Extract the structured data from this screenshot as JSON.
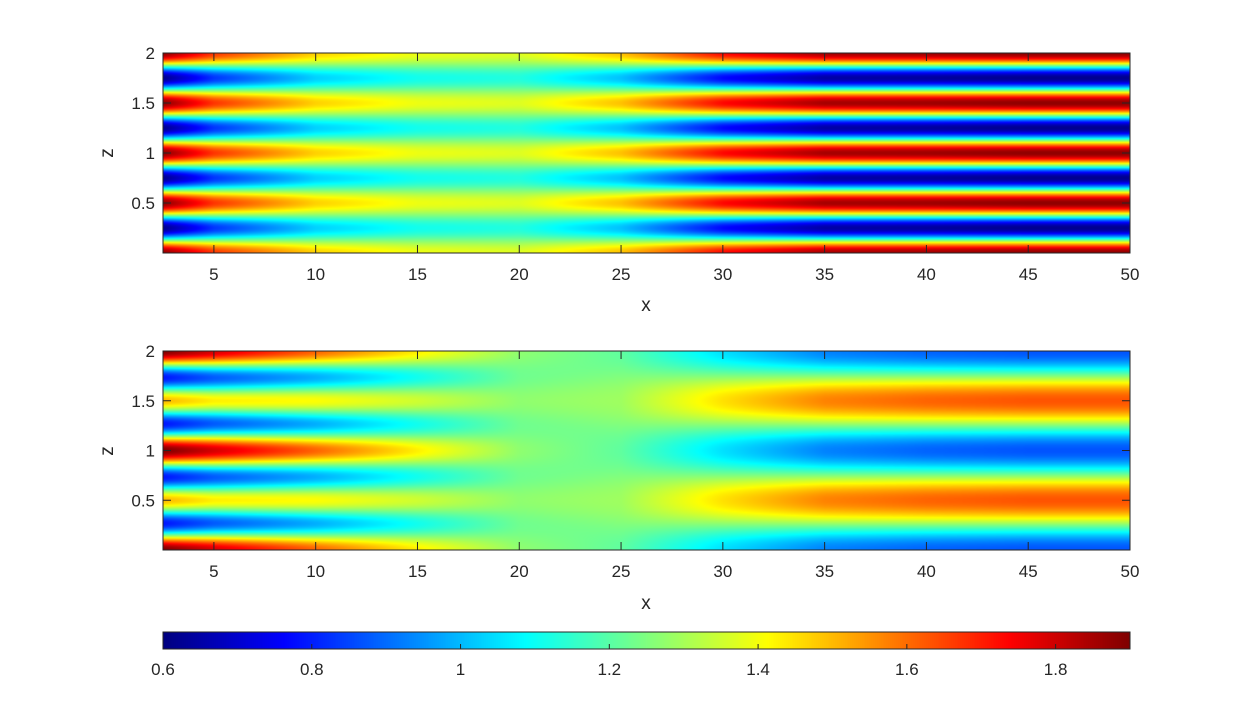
{
  "chart_data": [
    {
      "type": "heatmap",
      "title": "",
      "xlabel": "x",
      "ylabel": "z",
      "xlim": [
        2.5,
        50
      ],
      "ylim": [
        0,
        2
      ],
      "xticks": [
        5,
        10,
        15,
        20,
        25,
        30,
        35,
        40,
        45,
        50
      ],
      "yticks": [
        0.5,
        1,
        1.5,
        2
      ],
      "colormap": "jet",
      "clim": [
        0.6,
        1.9
      ],
      "description_values": {
        "x_samples": [
          2.5,
          5,
          10,
          15,
          20,
          25,
          30,
          35,
          40,
          45,
          50
        ],
        "mean_level": [
          1.25,
          1.25,
          1.25,
          1.25,
          1.25,
          1.25,
          1.25,
          1.25,
          1.25,
          1.25,
          1.25
        ],
        "amplitude_cos4piz": [
          0.63,
          0.42,
          0.22,
          0.14,
          0.12,
          0.24,
          0.48,
          0.6,
          0.61,
          0.63,
          0.63
        ]
      }
    },
    {
      "type": "heatmap",
      "title": "",
      "xlabel": "x",
      "ylabel": "z",
      "xlim": [
        2.5,
        50
      ],
      "ylim": [
        0,
        2
      ],
      "xticks": [
        5,
        10,
        15,
        20,
        25,
        30,
        35,
        40,
        45,
        50
      ],
      "yticks": [
        0.5,
        1,
        1.5,
        2
      ],
      "colormap": "jet",
      "clim": [
        0.6,
        1.9
      ],
      "description_values": {
        "x_samples": [
          2.5,
          5,
          10,
          15,
          20,
          25,
          30,
          35,
          40,
          45,
          50
        ],
        "mean_level": [
          1.25,
          1.25,
          1.25,
          1.25,
          1.25,
          1.25,
          1.25,
          1.25,
          1.25,
          1.25,
          1.25
        ],
        "amplitude_cos2piz": [
          0.2,
          0.18,
          0.1,
          0.04,
          0.0,
          -0.04,
          -0.2,
          -0.32,
          -0.36,
          -0.38,
          -0.38
        ],
        "amplitude_cos4piz": [
          0.45,
          0.36,
          0.26,
          0.14,
          0.02,
          0.0,
          0.0,
          0.0,
          0.0,
          0.0,
          0.0
        ]
      }
    }
  ],
  "colorbar": {
    "ticks": [
      "0.6",
      "0.8",
      "1",
      "1.2",
      "1.4",
      "1.6",
      "1.8"
    ],
    "tick_values": [
      0.6,
      0.8,
      1.0,
      1.2,
      1.4,
      1.6,
      1.8
    ],
    "range": [
      0.6,
      1.9
    ]
  },
  "panels": [
    {
      "xlabel": "x",
      "ylabel": "z",
      "xtick_labels": [
        "5",
        "10",
        "15",
        "20",
        "25",
        "30",
        "35",
        "40",
        "45",
        "50"
      ],
      "ytick_labels": [
        "0.5",
        "1",
        "1.5",
        "2"
      ]
    },
    {
      "xlabel": "x",
      "ylabel": "z",
      "xtick_labels": [
        "5",
        "10",
        "15",
        "20",
        "25",
        "30",
        "35",
        "40",
        "45",
        "50"
      ],
      "ytick_labels": [
        "0.5",
        "1",
        "1.5",
        "2"
      ]
    }
  ]
}
